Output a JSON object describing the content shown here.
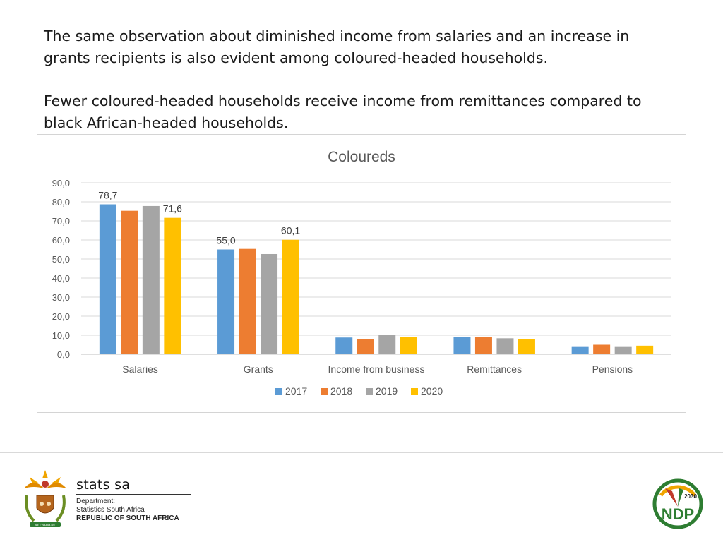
{
  "paragraphs": {
    "p1": "The same observation about diminished income from salaries and an increase in grants recipients is also evident among coloured-headed households.",
    "p2": "Fewer coloured-headed households receive income from remittances compared to black African-headed households."
  },
  "chart_data": {
    "type": "bar",
    "title": "Coloureds",
    "categories": [
      "Salaries",
      "Grants",
      "Income from business",
      "Remittances",
      "Pensions"
    ],
    "series": [
      {
        "name": "2017",
        "color": "#5b9bd5",
        "values": [
          78.7,
          55.0,
          8.8,
          9.2,
          4.2
        ]
      },
      {
        "name": "2018",
        "color": "#ed7d31",
        "values": [
          75.3,
          55.3,
          8.0,
          9.0,
          5.0
        ]
      },
      {
        "name": "2019",
        "color": "#a5a5a5",
        "values": [
          77.8,
          52.6,
          10.0,
          8.4,
          4.2
        ]
      },
      {
        "name": "2020",
        "color": "#ffc000",
        "values": [
          71.6,
          60.1,
          9.0,
          7.8,
          4.5
        ]
      }
    ],
    "data_labels": [
      {
        "category": "Salaries",
        "series": "2017",
        "text": "78,7"
      },
      {
        "category": "Salaries",
        "series": "2020",
        "text": "71,6"
      },
      {
        "category": "Grants",
        "series": "2017",
        "text": "55,0"
      },
      {
        "category": "Grants",
        "series": "2020",
        "text": "60,1"
      }
    ],
    "ylim": [
      0,
      90
    ],
    "yticks": [
      "0,0",
      "10,0",
      "20,0",
      "30,0",
      "40,0",
      "50,0",
      "60,0",
      "70,0",
      "80,0",
      "90,0"
    ],
    "grid": true,
    "legend_position": "bottom",
    "xlabel": "",
    "ylabel": ""
  },
  "footer": {
    "brand_name": "stats sa",
    "department_line1": "Department:",
    "department_line2": "Statistics South Africa",
    "department_line3": "REPUBLIC OF SOUTH AFRICA",
    "ndp_text": "NDP",
    "ndp_year": "2030",
    "crest_motto": "!KE E: /XARRA //KE"
  }
}
